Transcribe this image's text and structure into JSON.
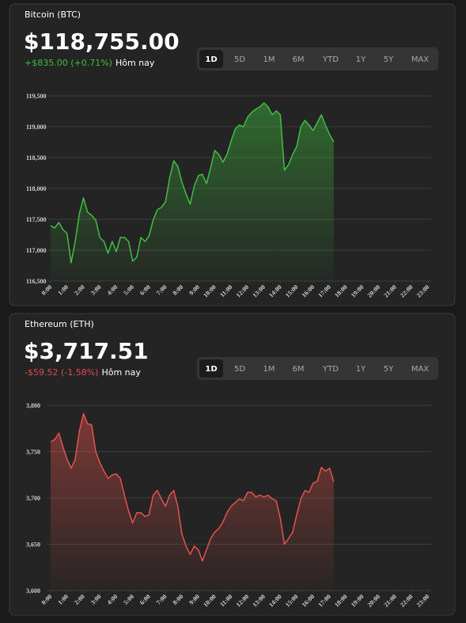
{
  "chart_data": [
    {
      "type": "line",
      "title": "Bitcoin (BTC)",
      "price": "$118,755.00",
      "change": "+$835.00 (+0.71%)",
      "change_period": "Hôm nay",
      "change_color": "#3fbf3f",
      "ranges": [
        "1D",
        "5D",
        "1M",
        "6M",
        "YTD",
        "1Y",
        "5Y",
        "MAX"
      ],
      "selected_range": "1D",
      "color": "#3fbf3f",
      "grid": true,
      "x": [
        0,
        0.25,
        0.5,
        0.75,
        1,
        1.25,
        1.5,
        1.75,
        2,
        2.25,
        2.5,
        2.75,
        3,
        3.25,
        3.5,
        3.75,
        4,
        4.25,
        4.5,
        4.75,
        5,
        5.25,
        5.5,
        5.75,
        6,
        6.25,
        6.5,
        6.75,
        7,
        7.25,
        7.5,
        7.75,
        8,
        8.25,
        8.5,
        8.75,
        9,
        9.25,
        9.5,
        9.75,
        10,
        10.25,
        10.5,
        10.75,
        11,
        11.25,
        11.5,
        11.75,
        12,
        12.25,
        12.5,
        12.75,
        13,
        13.25,
        13.5,
        13.75,
        14,
        14.25,
        14.5,
        14.75,
        15,
        15.25,
        15.5,
        15.75,
        16,
        16.25,
        16.5,
        16.75,
        17,
        17.25
      ],
      "values": [
        117397,
        117359,
        117449,
        117333,
        117269,
        116795,
        117141,
        117590,
        117846,
        117615,
        117564,
        117487,
        117205,
        117141,
        116949,
        117141,
        116974,
        117205,
        117205,
        117141,
        116821,
        116885,
        117205,
        117141,
        117231,
        117487,
        117654,
        117692,
        117782,
        118167,
        118449,
        118359,
        118103,
        117910,
        117744,
        118038,
        118205,
        118231,
        118077,
        118333,
        118615,
        118551,
        118423,
        118551,
        118769,
        118962,
        119026,
        119000,
        119154,
        119231,
        119282,
        119321,
        119385,
        119321,
        119192,
        119256,
        119192,
        118295,
        118385,
        118551,
        118679,
        119000,
        119103,
        119026,
        118936,
        119064,
        119192,
        119026,
        118872,
        118755
      ],
      "xlim": [
        0,
        23
      ],
      "xticks": [
        {
          "value": 0,
          "label": "0:00"
        },
        {
          "value": 1,
          "label": "1:00"
        },
        {
          "value": 2,
          "label": "2:00"
        },
        {
          "value": 3,
          "label": "3:00"
        },
        {
          "value": 4,
          "label": "4:00"
        },
        {
          "value": 5,
          "label": "5:00"
        },
        {
          "value": 6,
          "label": "6:00"
        },
        {
          "value": 7,
          "label": "7:00"
        },
        {
          "value": 8,
          "label": "8:00"
        },
        {
          "value": 9,
          "label": "9:00"
        },
        {
          "value": 10,
          "label": "10:00"
        },
        {
          "value": 11,
          "label": "11:00"
        },
        {
          "value": 12,
          "label": "12:00"
        },
        {
          "value": 13,
          "label": "13:00"
        },
        {
          "value": 14,
          "label": "14:00"
        },
        {
          "value": 15,
          "label": "15:00"
        },
        {
          "value": 16,
          "label": "16:00"
        },
        {
          "value": 17,
          "label": "17:00"
        },
        {
          "value": 18,
          "label": "18:00"
        },
        {
          "value": 19,
          "label": "19:00"
        },
        {
          "value": 20,
          "label": "20:00"
        },
        {
          "value": 21,
          "label": "21:00"
        },
        {
          "value": 22,
          "label": "22:00"
        },
        {
          "value": 23,
          "label": "23:00"
        }
      ],
      "ylim": [
        116500,
        119500
      ],
      "yticks": [
        {
          "value": 116500,
          "label": "116,500"
        },
        {
          "value": 117000,
          "label": "117,000"
        },
        {
          "value": 117500,
          "label": "117,500"
        },
        {
          "value": 118000,
          "label": "118,000"
        },
        {
          "value": 118500,
          "label": "118,500"
        },
        {
          "value": 119000,
          "label": "119,000"
        },
        {
          "value": 119500,
          "label": "119,500"
        }
      ]
    },
    {
      "type": "line",
      "title": "Ethereum (ETH)",
      "price": "$3,717.51",
      "change": "-$59.52 (-1.58%)",
      "change_period": "Hôm nay",
      "change_color": "#e5484d",
      "ranges": [
        "1D",
        "5D",
        "1M",
        "6M",
        "YTD",
        "1Y",
        "5Y",
        "MAX"
      ],
      "selected_range": "1D",
      "color": "#e5534b",
      "grid": true,
      "x": [
        0,
        0.25,
        0.5,
        0.75,
        1,
        1.25,
        1.5,
        1.75,
        2,
        2.25,
        2.5,
        2.75,
        3,
        3.25,
        3.5,
        3.75,
        4,
        4.25,
        4.5,
        4.75,
        5,
        5.25,
        5.5,
        5.75,
        6,
        6.25,
        6.5,
        6.75,
        7,
        7.25,
        7.5,
        7.75,
        8,
        8.25,
        8.5,
        8.75,
        9,
        9.25,
        9.5,
        9.75,
        10,
        10.25,
        10.5,
        10.75,
        11,
        11.25,
        11.5,
        11.75,
        12,
        12.25,
        12.5,
        12.75,
        13,
        13.25,
        13.5,
        13.75,
        14,
        14.25,
        14.5,
        14.75,
        15,
        15.25,
        15.5,
        15.75,
        16,
        16.25,
        16.5,
        16.75,
        17,
        17.25
      ],
      "values": [
        3760.7,
        3763,
        3770,
        3755,
        3742,
        3732,
        3742,
        3772,
        3791,
        3780,
        3779,
        3750,
        3738,
        3729,
        3721,
        3725,
        3726,
        3721,
        3703,
        3686,
        3673,
        3684,
        3684,
        3680,
        3682,
        3703,
        3708,
        3699,
        3691,
        3703,
        3708,
        3691,
        3661,
        3648,
        3639,
        3648,
        3644,
        3632,
        3644,
        3656,
        3663,
        3667,
        3674,
        3684,
        3691,
        3695,
        3699,
        3697,
        3706,
        3706,
        3701,
        3703,
        3701,
        3703,
        3699,
        3697,
        3678,
        3650,
        3656,
        3663,
        3682,
        3699,
        3708,
        3706,
        3716,
        3718,
        3733,
        3729,
        3732,
        3717.51
      ],
      "xlim": [
        0,
        23
      ],
      "xticks": [
        {
          "value": 0,
          "label": "0:00"
        },
        {
          "value": 1,
          "label": "1:00"
        },
        {
          "value": 2,
          "label": "2:00"
        },
        {
          "value": 3,
          "label": "3:00"
        },
        {
          "value": 4,
          "label": "4:00"
        },
        {
          "value": 5,
          "label": "5:00"
        },
        {
          "value": 6,
          "label": "6:00"
        },
        {
          "value": 7,
          "label": "7:00"
        },
        {
          "value": 8,
          "label": "8:00"
        },
        {
          "value": 9,
          "label": "9:00"
        },
        {
          "value": 10,
          "label": "10:00"
        },
        {
          "value": 11,
          "label": "11:00"
        },
        {
          "value": 12,
          "label": "12:00"
        },
        {
          "value": 13,
          "label": "13:00"
        },
        {
          "value": 14,
          "label": "14:00"
        },
        {
          "value": 15,
          "label": "15:00"
        },
        {
          "value": 16,
          "label": "16:00"
        },
        {
          "value": 17,
          "label": "17:00"
        },
        {
          "value": 18,
          "label": "18:00"
        },
        {
          "value": 19,
          "label": "19:00"
        },
        {
          "value": 20,
          "label": "20:00"
        },
        {
          "value": 21,
          "label": "21:00"
        },
        {
          "value": 22,
          "label": "22:00"
        },
        {
          "value": 23,
          "label": "23:00"
        }
      ],
      "ylim": [
        3600,
        3800
      ],
      "yticks": [
        {
          "value": 3600,
          "label": "3,600"
        },
        {
          "value": 3650,
          "label": "3,650"
        },
        {
          "value": 3700,
          "label": "3,700"
        },
        {
          "value": 3750,
          "label": "3,750"
        },
        {
          "value": 3800,
          "label": "3,800"
        }
      ]
    }
  ]
}
